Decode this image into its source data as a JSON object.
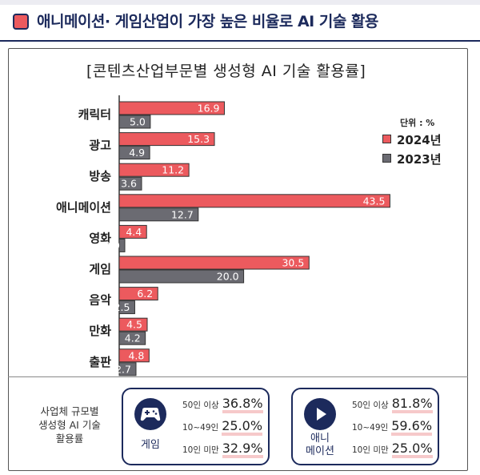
{
  "header": {
    "title": "애니메이션· 게임산업이 가장 높은 비율로 AI 기술 활용",
    "accent_color": "#ec5a5e",
    "navy_color": "#1c2a5c"
  },
  "chart_data": {
    "type": "bar",
    "orientation": "horizontal",
    "title": "[콘텐츠산업부문별 생성형  AI  기술 활용률]",
    "unit_label": "단위 : %",
    "xlim": [
      0,
      50
    ],
    "categories": [
      "캐릭터",
      "광고",
      "방송",
      "애니메이션",
      "영화",
      "게임",
      "음악",
      "만화",
      "출판"
    ],
    "series": [
      {
        "name": "2024년",
        "color": "#ec5a5e",
        "values": [
          16.9,
          15.3,
          11.2,
          43.5,
          4.4,
          30.5,
          6.2,
          4.5,
          4.8
        ]
      },
      {
        "name": "2023년",
        "color": "#6b6b72",
        "values": [
          5.0,
          4.9,
          3.6,
          12.7,
          0.9,
          20.0,
          2.5,
          4.2,
          2.7
        ]
      }
    ],
    "legend_position": "top-right"
  },
  "company_size": {
    "label_lines": [
      "사업체 규모별",
      "생성형 AI  기술",
      "활용률"
    ],
    "cards": [
      {
        "name": "게임",
        "icon": "gamepad-icon",
        "rows": [
          {
            "band": "50인 이상",
            "value": "36.8%"
          },
          {
            "band": "10~49인",
            "value": "25.0%"
          },
          {
            "band": "10인 미만",
            "value": "32.9%"
          }
        ]
      },
      {
        "name": "애니\n메이션",
        "name_lines": [
          "애니",
          "메이션"
        ],
        "icon": "play-icon",
        "rows": [
          {
            "band": "50인 이상",
            "value": "81.8%"
          },
          {
            "band": "10~49인",
            "value": "59.6%"
          },
          {
            "band": "10인 미만",
            "value": "25.0%"
          }
        ]
      }
    ]
  }
}
